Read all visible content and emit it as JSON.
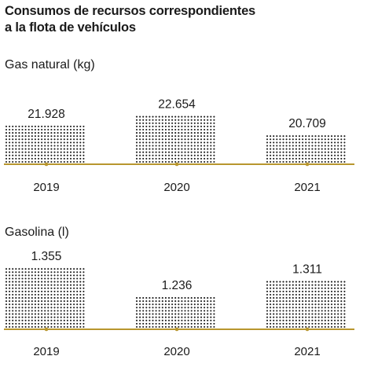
{
  "title_line1": "Consumos de recursos correspondientes",
  "title_line2": "a la flota de vehículos",
  "axis_color": "#b8962e",
  "dot_color": "#1a1a1a",
  "chart_data": [
    {
      "type": "bar",
      "ylabel": "Gas natural (kg)",
      "categories": [
        "2019",
        "2020",
        "2021"
      ],
      "values": [
        21928,
        22654,
        20709
      ],
      "value_labels": [
        "21.928",
        "22.654",
        "20.709"
      ],
      "ylim": [
        20000,
        23000
      ],
      "grid": false
    },
    {
      "type": "bar",
      "ylabel": "Gasolina (l)",
      "categories": [
        "2019",
        "2020",
        "2021"
      ],
      "values": [
        1355,
        1236,
        1311
      ],
      "value_labels": [
        "1.355",
        "1.236",
        "1.311"
      ],
      "ylim": [
        1200,
        1370
      ],
      "grid": false
    }
  ]
}
